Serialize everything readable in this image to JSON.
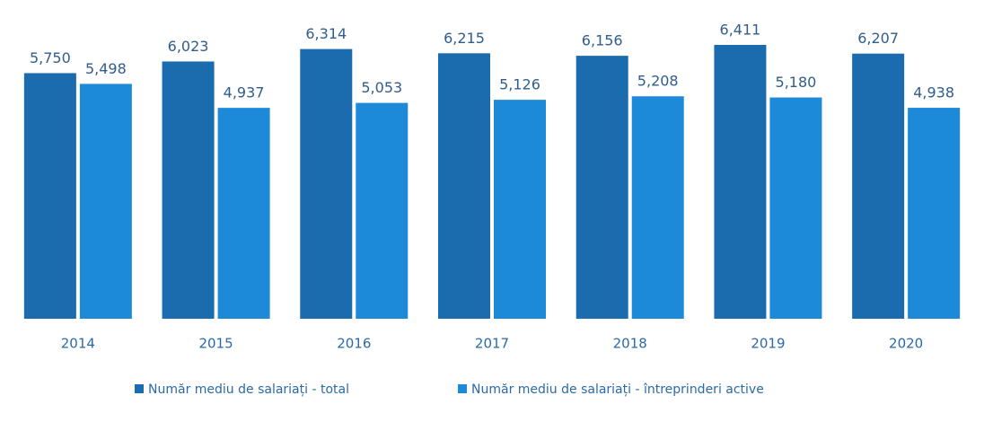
{
  "chart_data": {
    "type": "bar",
    "categories": [
      "2014",
      "2015",
      "2016",
      "2017",
      "2018",
      "2019",
      "2020"
    ],
    "series": [
      {
        "name": "Număr mediu de salariați - total",
        "color": "#1a6cae",
        "values": [
          5750,
          6023,
          6314,
          6215,
          6156,
          6411,
          6207
        ],
        "value_labels": [
          "5,750",
          "6,023",
          "6,314",
          "6,215",
          "6,156",
          "6,411",
          "6,207"
        ]
      },
      {
        "name": "Număr mediu de salariați - întreprinderi active",
        "color": "#1c8ad8",
        "values": [
          5498,
          4937,
          5053,
          5126,
          5208,
          5180,
          4938
        ],
        "value_labels": [
          "5,498",
          "4,937",
          "5,053",
          "5,126",
          "5,208",
          "5,180",
          "4,938"
        ]
      }
    ]
  }
}
